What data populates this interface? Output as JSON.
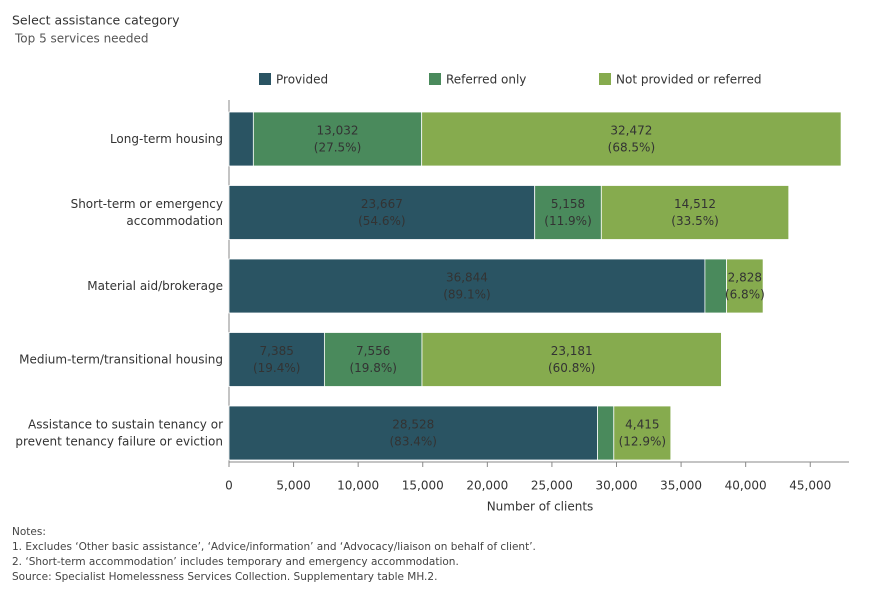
{
  "chart_data": {
    "type": "stacked-bar-horizontal",
    "title": "Select assistance category",
    "subtitle": "Top 5 services needed",
    "categories": [
      [
        "Long-term housing"
      ],
      [
        "Short-term or emergency",
        "accommodation"
      ],
      [
        "Material aid/brokerage"
      ],
      [
        "Medium-term/transitional housing"
      ],
      [
        "Assistance to sustain tenancy or",
        "prevent tenancy failure or eviction"
      ]
    ],
    "series": [
      {
        "name": "Provided",
        "color": "#2a5463",
        "values": [
          1885,
          23667,
          36844,
          7385,
          28528
        ],
        "value_labels": [
          null,
          "23,667",
          "36,844",
          "7,385",
          "28,528"
        ],
        "share_labels": [
          null,
          "(54.6%)",
          "(89.1%)",
          "(19.4%)",
          "(83.4%)"
        ]
      },
      {
        "name": "Referred only",
        "color": "#4a8a5c",
        "values": [
          13032,
          5158,
          1679,
          7556,
          1263
        ],
        "value_labels": [
          "13,032",
          "5,158",
          null,
          "7,556",
          null
        ],
        "share_labels": [
          "(27.5%)",
          "(11.9%)",
          null,
          "(19.8%)",
          null
        ]
      },
      {
        "name": "Not provided or referred",
        "color": "#86ab4e",
        "values": [
          32472,
          14512,
          2828,
          23181,
          4415
        ],
        "value_labels": [
          "32,472",
          "14,512",
          "2,828",
          "23,181",
          "4,415"
        ],
        "share_labels": [
          "(68.5%)",
          "(33.5%)",
          "(6.8%)",
          "(60.8%)",
          "(12.9%)"
        ]
      }
    ],
    "x_label": "Number of clients",
    "xlim": [
      0,
      48000
    ],
    "xticks": [
      0,
      {
        "value": 5000,
        "label": "5,000"
      },
      {
        "value": 10000,
        "label": "10,000"
      },
      {
        "value": 15000,
        "label": "15,000"
      },
      {
        "value": 20000,
        "label": "20,000"
      },
      {
        "value": 25000,
        "label": "25,000"
      },
      {
        "value": 30000,
        "label": "30,000"
      },
      {
        "value": 35000,
        "label": "35,000"
      },
      {
        "value": 40000,
        "label": "40,000"
      },
      {
        "value": 45000,
        "label": "45,000"
      }
    ],
    "grid": false,
    "notes": [
      "Notes:",
      "1. Excludes ‘Other basic assistance’, ‘Advice/information’ and ‘Advocacy/liaison on behalf of client’.",
      "2. ‘Short-term accommodation’ includes temporary and emergency accommodation.",
      "Source: Specialist Homelessness Services Collection. Supplementary table MH.2."
    ]
  }
}
